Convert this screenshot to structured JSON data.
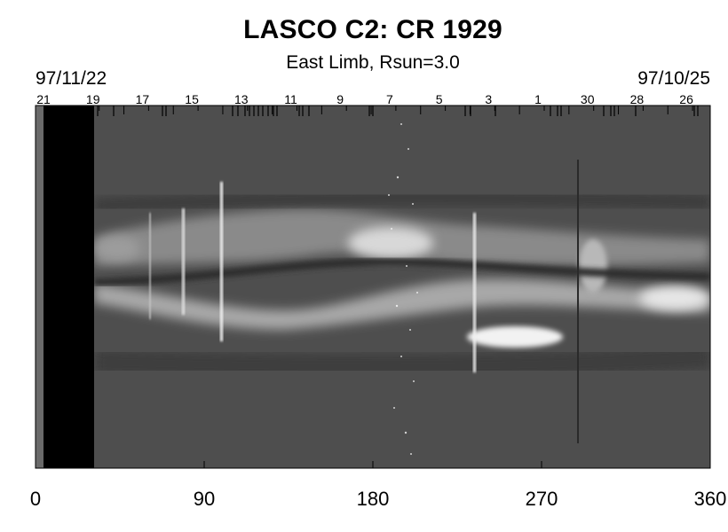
{
  "chart_data": {
    "type": "heatmap",
    "title": "LASCO C2: CR 1929",
    "subtitle": "East Limb, Rsun=3.0",
    "date_start": "97/11/22",
    "date_end": "97/10/25",
    "x_ticks": [
      0,
      90,
      180,
      270,
      360
    ],
    "xlim": [
      0,
      360
    ],
    "day_ticks": [
      "21",
      "19",
      "17",
      "15",
      "13",
      "11",
      "9",
      "7",
      "5",
      "3",
      "1",
      "30",
      "28",
      "26"
    ],
    "colormap": "grayscale"
  }
}
